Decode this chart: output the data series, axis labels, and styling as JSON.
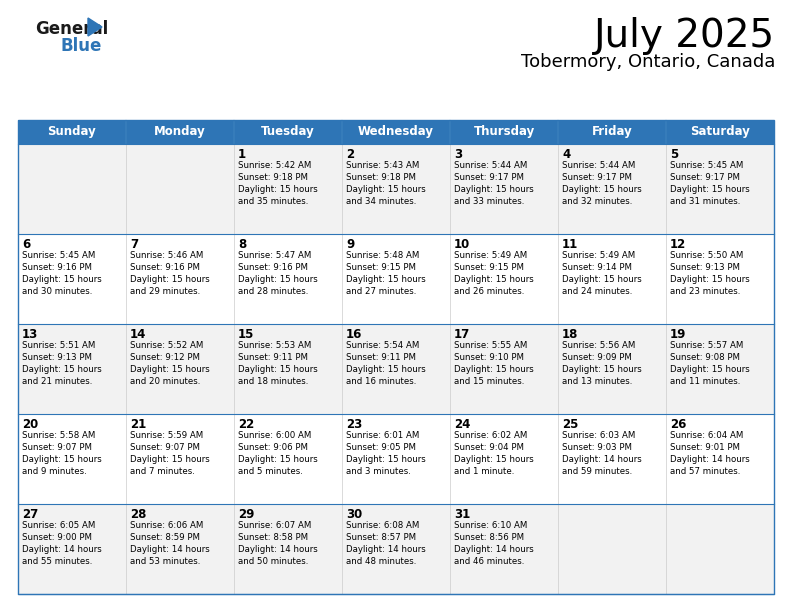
{
  "title": "July 2025",
  "subtitle": "Tobermory, Ontario, Canada",
  "days_of_week": [
    "Sunday",
    "Monday",
    "Tuesday",
    "Wednesday",
    "Thursday",
    "Friday",
    "Saturday"
  ],
  "header_bg": "#2E75B6",
  "header_text": "#FFFFFF",
  "cell_bg_odd": "#F2F2F2",
  "cell_bg_even": "#FFFFFF",
  "border_color": "#2E75B6",
  "row_divider_color": "#2E75B6",
  "col_divider_color": "#CCCCCC",
  "text_color": "#000000",
  "logo_general_color": "#1a1a1a",
  "logo_blue_color": "#2E75B6",
  "logo_triangle_color": "#2E75B6",
  "calendar": [
    [
      {
        "day": "",
        "info": ""
      },
      {
        "day": "",
        "info": ""
      },
      {
        "day": "1",
        "info": "Sunrise: 5:42 AM\nSunset: 9:18 PM\nDaylight: 15 hours\nand 35 minutes."
      },
      {
        "day": "2",
        "info": "Sunrise: 5:43 AM\nSunset: 9:18 PM\nDaylight: 15 hours\nand 34 minutes."
      },
      {
        "day": "3",
        "info": "Sunrise: 5:44 AM\nSunset: 9:17 PM\nDaylight: 15 hours\nand 33 minutes."
      },
      {
        "day": "4",
        "info": "Sunrise: 5:44 AM\nSunset: 9:17 PM\nDaylight: 15 hours\nand 32 minutes."
      },
      {
        "day": "5",
        "info": "Sunrise: 5:45 AM\nSunset: 9:17 PM\nDaylight: 15 hours\nand 31 minutes."
      }
    ],
    [
      {
        "day": "6",
        "info": "Sunrise: 5:45 AM\nSunset: 9:16 PM\nDaylight: 15 hours\nand 30 minutes."
      },
      {
        "day": "7",
        "info": "Sunrise: 5:46 AM\nSunset: 9:16 PM\nDaylight: 15 hours\nand 29 minutes."
      },
      {
        "day": "8",
        "info": "Sunrise: 5:47 AM\nSunset: 9:16 PM\nDaylight: 15 hours\nand 28 minutes."
      },
      {
        "day": "9",
        "info": "Sunrise: 5:48 AM\nSunset: 9:15 PM\nDaylight: 15 hours\nand 27 minutes."
      },
      {
        "day": "10",
        "info": "Sunrise: 5:49 AM\nSunset: 9:15 PM\nDaylight: 15 hours\nand 26 minutes."
      },
      {
        "day": "11",
        "info": "Sunrise: 5:49 AM\nSunset: 9:14 PM\nDaylight: 15 hours\nand 24 minutes."
      },
      {
        "day": "12",
        "info": "Sunrise: 5:50 AM\nSunset: 9:13 PM\nDaylight: 15 hours\nand 23 minutes."
      }
    ],
    [
      {
        "day": "13",
        "info": "Sunrise: 5:51 AM\nSunset: 9:13 PM\nDaylight: 15 hours\nand 21 minutes."
      },
      {
        "day": "14",
        "info": "Sunrise: 5:52 AM\nSunset: 9:12 PM\nDaylight: 15 hours\nand 20 minutes."
      },
      {
        "day": "15",
        "info": "Sunrise: 5:53 AM\nSunset: 9:11 PM\nDaylight: 15 hours\nand 18 minutes."
      },
      {
        "day": "16",
        "info": "Sunrise: 5:54 AM\nSunset: 9:11 PM\nDaylight: 15 hours\nand 16 minutes."
      },
      {
        "day": "17",
        "info": "Sunrise: 5:55 AM\nSunset: 9:10 PM\nDaylight: 15 hours\nand 15 minutes."
      },
      {
        "day": "18",
        "info": "Sunrise: 5:56 AM\nSunset: 9:09 PM\nDaylight: 15 hours\nand 13 minutes."
      },
      {
        "day": "19",
        "info": "Sunrise: 5:57 AM\nSunset: 9:08 PM\nDaylight: 15 hours\nand 11 minutes."
      }
    ],
    [
      {
        "day": "20",
        "info": "Sunrise: 5:58 AM\nSunset: 9:07 PM\nDaylight: 15 hours\nand 9 minutes."
      },
      {
        "day": "21",
        "info": "Sunrise: 5:59 AM\nSunset: 9:07 PM\nDaylight: 15 hours\nand 7 minutes."
      },
      {
        "day": "22",
        "info": "Sunrise: 6:00 AM\nSunset: 9:06 PM\nDaylight: 15 hours\nand 5 minutes."
      },
      {
        "day": "23",
        "info": "Sunrise: 6:01 AM\nSunset: 9:05 PM\nDaylight: 15 hours\nand 3 minutes."
      },
      {
        "day": "24",
        "info": "Sunrise: 6:02 AM\nSunset: 9:04 PM\nDaylight: 15 hours\nand 1 minute."
      },
      {
        "day": "25",
        "info": "Sunrise: 6:03 AM\nSunset: 9:03 PM\nDaylight: 14 hours\nand 59 minutes."
      },
      {
        "day": "26",
        "info": "Sunrise: 6:04 AM\nSunset: 9:01 PM\nDaylight: 14 hours\nand 57 minutes."
      }
    ],
    [
      {
        "day": "27",
        "info": "Sunrise: 6:05 AM\nSunset: 9:00 PM\nDaylight: 14 hours\nand 55 minutes."
      },
      {
        "day": "28",
        "info": "Sunrise: 6:06 AM\nSunset: 8:59 PM\nDaylight: 14 hours\nand 53 minutes."
      },
      {
        "day": "29",
        "info": "Sunrise: 6:07 AM\nSunset: 8:58 PM\nDaylight: 14 hours\nand 50 minutes."
      },
      {
        "day": "30",
        "info": "Sunrise: 6:08 AM\nSunset: 8:57 PM\nDaylight: 14 hours\nand 48 minutes."
      },
      {
        "day": "31",
        "info": "Sunrise: 6:10 AM\nSunset: 8:56 PM\nDaylight: 14 hours\nand 46 minutes."
      },
      {
        "day": "",
        "info": ""
      },
      {
        "day": "",
        "info": ""
      }
    ]
  ]
}
